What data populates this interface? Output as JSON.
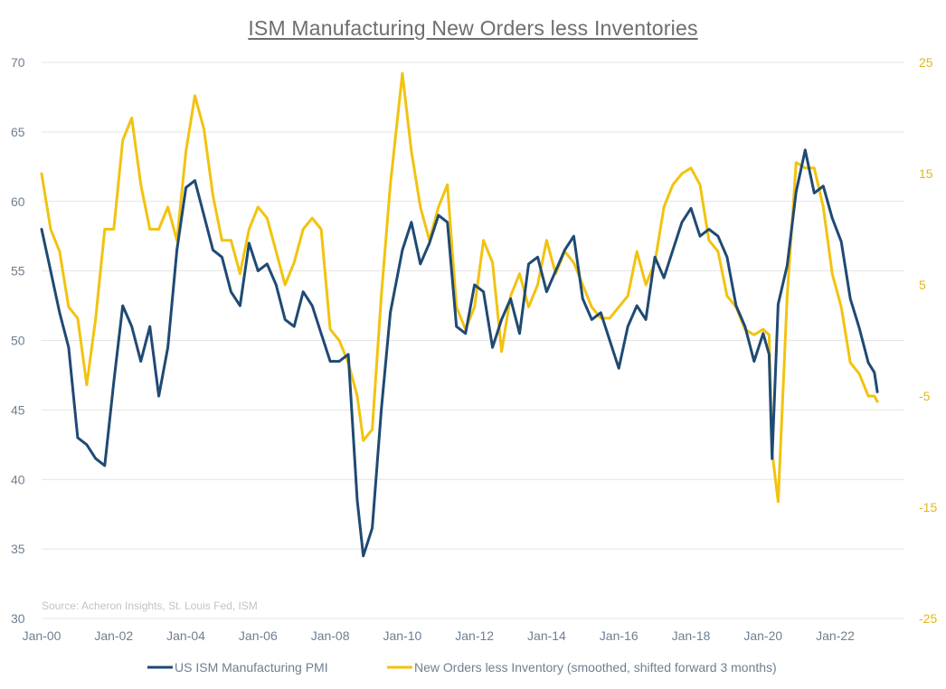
{
  "chart_data": {
    "type": "line",
    "title": "ISM Manufacturing New Orders less Inventories",
    "source": "Source: Acheron Insights, St. Louis Fed, ISM",
    "x_axis": {
      "type": "date",
      "range": [
        "2000-01",
        "2023-12"
      ],
      "tick_labels": [
        "Jan-00",
        "Jan-02",
        "Jan-04",
        "Jan-06",
        "Jan-08",
        "Jan-10",
        "Jan-12",
        "Jan-14",
        "Jan-16",
        "Jan-18",
        "Jan-20",
        "Jan-22"
      ],
      "tick_dates": [
        "2000-01",
        "2002-01",
        "2004-01",
        "2006-01",
        "2008-01",
        "2010-01",
        "2012-01",
        "2014-01",
        "2016-01",
        "2018-01",
        "2020-01",
        "2022-01"
      ]
    },
    "y_axis_left": {
      "min": 30,
      "max": 70,
      "ticks": [
        30,
        35,
        40,
        45,
        50,
        55,
        60,
        65,
        70
      ],
      "labels": [
        "30",
        "35",
        "40",
        "45",
        "50",
        "55",
        "60",
        "65",
        "70"
      ]
    },
    "y_axis_right": {
      "min": -25,
      "max": 25,
      "ticks": [
        -25,
        -15,
        -5,
        5,
        15,
        25
      ],
      "labels": [
        "-25",
        "-15",
        "-5",
        "5",
        "15",
        "25"
      ]
    },
    "grid": true,
    "legend_position": "bottom",
    "colors": {
      "pmi": "#1f4a73",
      "neworders": "#f2c30f",
      "grid": "#e4e4e4"
    },
    "series": [
      {
        "name": "US ISM Manufacturing PMI",
        "axis": "left",
        "points": [
          [
            "2000-01",
            58.0
          ],
          [
            "2000-04",
            55.0
          ],
          [
            "2000-07",
            52.0
          ],
          [
            "2000-10",
            49.5
          ],
          [
            "2001-01",
            43.0
          ],
          [
            "2001-04",
            42.5
          ],
          [
            "2001-07",
            41.5
          ],
          [
            "2001-10",
            41.0
          ],
          [
            "2002-01",
            47.0
          ],
          [
            "2002-04",
            52.5
          ],
          [
            "2002-07",
            51.0
          ],
          [
            "2002-10",
            48.5
          ],
          [
            "2003-01",
            51.0
          ],
          [
            "2003-04",
            46.0
          ],
          [
            "2003-07",
            49.5
          ],
          [
            "2003-10",
            56.5
          ],
          [
            "2004-01",
            61.0
          ],
          [
            "2004-04",
            61.5
          ],
          [
            "2004-07",
            59.0
          ],
          [
            "2004-10",
            56.5
          ],
          [
            "2005-01",
            56.0
          ],
          [
            "2005-04",
            53.5
          ],
          [
            "2005-07",
            52.5
          ],
          [
            "2005-10",
            57.0
          ],
          [
            "2006-01",
            55.0
          ],
          [
            "2006-04",
            55.5
          ],
          [
            "2006-07",
            54.0
          ],
          [
            "2006-10",
            51.5
          ],
          [
            "2007-01",
            51.0
          ],
          [
            "2007-04",
            53.5
          ],
          [
            "2007-07",
            52.5
          ],
          [
            "2007-10",
            50.5
          ],
          [
            "2008-01",
            48.5
          ],
          [
            "2008-04",
            48.5
          ],
          [
            "2008-07",
            49.0
          ],
          [
            "2008-10",
            38.5
          ],
          [
            "2008-12",
            34.5
          ],
          [
            "2009-03",
            36.5
          ],
          [
            "2009-06",
            45.0
          ],
          [
            "2009-09",
            52.0
          ],
          [
            "2010-01",
            56.5
          ],
          [
            "2010-04",
            58.5
          ],
          [
            "2010-07",
            55.5
          ],
          [
            "2010-10",
            57.0
          ],
          [
            "2011-01",
            59.0
          ],
          [
            "2011-04",
            58.5
          ],
          [
            "2011-07",
            51.0
          ],
          [
            "2011-10",
            50.5
          ],
          [
            "2012-01",
            54.0
          ],
          [
            "2012-04",
            53.5
          ],
          [
            "2012-07",
            49.5
          ],
          [
            "2012-10",
            51.5
          ],
          [
            "2013-01",
            53.0
          ],
          [
            "2013-04",
            50.5
          ],
          [
            "2013-07",
            55.5
          ],
          [
            "2013-10",
            56.0
          ],
          [
            "2014-01",
            53.5
          ],
          [
            "2014-04",
            55.0
          ],
          [
            "2014-07",
            56.5
          ],
          [
            "2014-10",
            57.5
          ],
          [
            "2015-01",
            53.0
          ],
          [
            "2015-04",
            51.5
          ],
          [
            "2015-07",
            52.0
          ],
          [
            "2015-10",
            50.0
          ],
          [
            "2016-01",
            48.0
          ],
          [
            "2016-04",
            51.0
          ],
          [
            "2016-07",
            52.5
          ],
          [
            "2016-10",
            51.5
          ],
          [
            "2017-01",
            56.0
          ],
          [
            "2017-04",
            54.5
          ],
          [
            "2017-07",
            56.5
          ],
          [
            "2017-10",
            58.5
          ],
          [
            "2018-01",
            59.5
          ],
          [
            "2018-04",
            57.5
          ],
          [
            "2018-07",
            58.0
          ],
          [
            "2018-10",
            57.5
          ],
          [
            "2019-01",
            56.0
          ],
          [
            "2019-04",
            52.5
          ],
          [
            "2019-07",
            51.0
          ],
          [
            "2019-10",
            48.5
          ],
          [
            "2020-01",
            50.5
          ],
          [
            "2020-03",
            49.0
          ],
          [
            "2020-04",
            41.5
          ],
          [
            "2020-06",
            52.6
          ],
          [
            "2020-09",
            55.4
          ],
          [
            "2020-12",
            60.7
          ],
          [
            "2021-03",
            63.7
          ],
          [
            "2021-06",
            60.6
          ],
          [
            "2021-09",
            61.1
          ],
          [
            "2021-12",
            58.8
          ],
          [
            "2022-03",
            57.1
          ],
          [
            "2022-06",
            53.0
          ],
          [
            "2022-09",
            50.9
          ],
          [
            "2022-12",
            48.4
          ],
          [
            "2023-02",
            47.7
          ],
          [
            "2023-03",
            46.3
          ]
        ]
      },
      {
        "name": "New Orders less Inventory (smoothed, shifted forward 3 months)",
        "axis": "right",
        "points": [
          [
            "2000-01",
            15.0
          ],
          [
            "2000-04",
            10.0
          ],
          [
            "2000-07",
            8.0
          ],
          [
            "2000-10",
            3.0
          ],
          [
            "2001-01",
            2.0
          ],
          [
            "2001-04",
            -4.0
          ],
          [
            "2001-07",
            2.0
          ],
          [
            "2001-10",
            10.0
          ],
          [
            "2002-01",
            10.0
          ],
          [
            "2002-04",
            18.0
          ],
          [
            "2002-07",
            20.0
          ],
          [
            "2002-10",
            14.0
          ],
          [
            "2003-01",
            10.0
          ],
          [
            "2003-04",
            10.0
          ],
          [
            "2003-07",
            12.0
          ],
          [
            "2003-10",
            9.0
          ],
          [
            "2004-01",
            17.0
          ],
          [
            "2004-04",
            22.0
          ],
          [
            "2004-07",
            19.0
          ],
          [
            "2004-10",
            13.0
          ],
          [
            "2005-01",
            9.0
          ],
          [
            "2005-04",
            9.0
          ],
          [
            "2005-07",
            6.0
          ],
          [
            "2005-10",
            10.0
          ],
          [
            "2006-01",
            12.0
          ],
          [
            "2006-04",
            11.0
          ],
          [
            "2006-07",
            8.0
          ],
          [
            "2006-10",
            5.0
          ],
          [
            "2007-01",
            7.0
          ],
          [
            "2007-04",
            10.0
          ],
          [
            "2007-07",
            11.0
          ],
          [
            "2007-10",
            10.0
          ],
          [
            "2008-01",
            1.0
          ],
          [
            "2008-04",
            0.0
          ],
          [
            "2008-07",
            -2.0
          ],
          [
            "2008-10",
            -5.0
          ],
          [
            "2008-12",
            -9.0
          ],
          [
            "2009-03",
            -8.0
          ],
          [
            "2009-06",
            4.0
          ],
          [
            "2009-09",
            14.0
          ],
          [
            "2010-01",
            24.0
          ],
          [
            "2010-04",
            17.0
          ],
          [
            "2010-07",
            12.0
          ],
          [
            "2010-10",
            9.0
          ],
          [
            "2011-01",
            12.0
          ],
          [
            "2011-04",
            14.0
          ],
          [
            "2011-07",
            3.0
          ],
          [
            "2011-10",
            1.0
          ],
          [
            "2012-01",
            3.0
          ],
          [
            "2012-04",
            9.0
          ],
          [
            "2012-07",
            7.0
          ],
          [
            "2012-10",
            -1.0
          ],
          [
            "2013-01",
            4.0
          ],
          [
            "2013-04",
            6.0
          ],
          [
            "2013-07",
            3.0
          ],
          [
            "2013-10",
            5.0
          ],
          [
            "2014-01",
            9.0
          ],
          [
            "2014-04",
            6.0
          ],
          [
            "2014-07",
            8.0
          ],
          [
            "2014-10",
            7.0
          ],
          [
            "2015-01",
            5.0
          ],
          [
            "2015-04",
            3.0
          ],
          [
            "2015-07",
            2.0
          ],
          [
            "2015-10",
            2.0
          ],
          [
            "2016-01",
            3.0
          ],
          [
            "2016-04",
            4.0
          ],
          [
            "2016-07",
            8.0
          ],
          [
            "2016-10",
            5.0
          ],
          [
            "2017-01",
            7.0
          ],
          [
            "2017-04",
            12.0
          ],
          [
            "2017-07",
            14.0
          ],
          [
            "2017-10",
            15.0
          ],
          [
            "2018-01",
            15.5
          ],
          [
            "2018-04",
            14.0
          ],
          [
            "2018-07",
            9.0
          ],
          [
            "2018-10",
            8.0
          ],
          [
            "2019-01",
            4.0
          ],
          [
            "2019-04",
            3.0
          ],
          [
            "2019-07",
            1.0
          ],
          [
            "2019-10",
            0.5
          ],
          [
            "2020-01",
            1.0
          ],
          [
            "2020-03",
            0.5
          ],
          [
            "2020-04",
            -10.0
          ],
          [
            "2020-06",
            -14.5
          ],
          [
            "2020-09",
            4.0
          ],
          [
            "2020-12",
            16.0
          ],
          [
            "2021-03",
            15.5
          ],
          [
            "2021-06",
            15.5
          ],
          [
            "2021-09",
            12.0
          ],
          [
            "2021-12",
            6.0
          ],
          [
            "2022-03",
            3.0
          ],
          [
            "2022-06",
            -2.0
          ],
          [
            "2022-09",
            -3.0
          ],
          [
            "2022-12",
            -5.0
          ],
          [
            "2023-02",
            -5.0
          ],
          [
            "2023-03",
            -5.5
          ]
        ]
      }
    ]
  }
}
